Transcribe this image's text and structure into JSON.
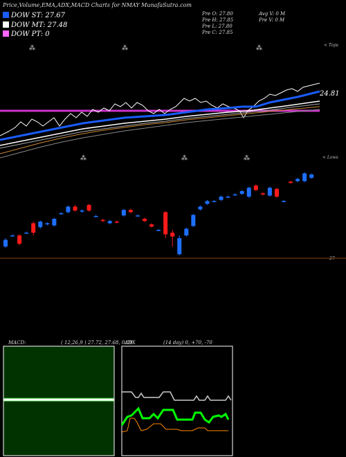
{
  "header": {
    "title": "Price,Volume,EMA,ADX,MACD Charts for NMAY MunafaSutra.com"
  },
  "legend": [
    {
      "label": "DOW ST: 27.67",
      "color": "#1a5cff"
    },
    {
      "label": "DOW MT: 27.48",
      "color": "#ffffff"
    },
    {
      "label": "DOW PT: 0",
      "color": "#ff66ff"
    }
  ],
  "prev_info": {
    "open": "Pre  O: 27.80",
    "high": "Pre  H: 27.85",
    "low": "Pre  L: 27.80",
    "close": "Pre  C: 27.85",
    "avg_volume": "Avg V: 0  M",
    "prev_volume": "Pre  V: 0  M"
  },
  "top_panel": {
    "right_label": "< Tops",
    "value_label": "24.81"
  },
  "price_panel": {
    "right_label": "< Lows",
    "bottom_value": "27"
  },
  "macd_panel": {
    "label": "MACD:",
    "values": "( 12,26,9 ) 27.72, 27.68, 0.09"
  },
  "adx_panel": {
    "label": "ADX",
    "values": "(14  day) 0, +70, -70"
  },
  "colors": {
    "bull_candle": "#1e6fff",
    "bear_candle": "#ff1a1a",
    "magenta_line": "#cc33cc",
    "macd_bg": "#003300",
    "adx_green": "#00ff00",
    "adx_orange": "#ff8800"
  },
  "chart_data": {
    "type": "candlestick",
    "title": "Price,Volume,EMA,ADX,MACD Charts for NMAY MunafaSutra.com",
    "candles": [
      {
        "open": 26.8,
        "close": 26.92,
        "high": 26.95,
        "low": 26.78,
        "dir": "up"
      },
      {
        "open": 27.0,
        "close": 27.0,
        "high": 27.02,
        "low": 26.98,
        "dir": "up"
      },
      {
        "open": 27.0,
        "close": 26.85,
        "high": 27.02,
        "low": 26.82,
        "dir": "down"
      },
      {
        "open": 27.05,
        "close": 27.05,
        "high": 27.07,
        "low": 27.03,
        "dir": "up"
      },
      {
        "open": 27.22,
        "close": 27.05,
        "high": 27.25,
        "low": 27.0,
        "dir": "down"
      },
      {
        "open": 27.15,
        "close": 27.25,
        "high": 27.27,
        "low": 27.12,
        "dir": "up"
      },
      {
        "open": 27.2,
        "close": 27.22,
        "high": 27.24,
        "low": 27.18,
        "dir": "up"
      },
      {
        "open": 27.18,
        "close": 27.3,
        "high": 27.32,
        "low": 27.16,
        "dir": "up"
      },
      {
        "open": 27.4,
        "close": 27.4,
        "high": 27.42,
        "low": 27.38,
        "dir": "up"
      },
      {
        "open": 27.42,
        "close": 27.52,
        "high": 27.54,
        "low": 27.4,
        "dir": "up"
      },
      {
        "open": 27.52,
        "close": 27.45,
        "high": 27.55,
        "low": 27.43,
        "dir": "down"
      },
      {
        "open": 27.43,
        "close": 27.45,
        "high": 27.47,
        "low": 27.41,
        "dir": "up"
      },
      {
        "open": 27.55,
        "close": 27.45,
        "high": 27.57,
        "low": 27.43,
        "dir": "down"
      },
      {
        "open": 27.35,
        "close": 27.35,
        "high": 27.37,
        "low": 27.33,
        "dir": "up"
      },
      {
        "open": 27.28,
        "close": 27.26,
        "high": 27.3,
        "low": 27.24,
        "dir": "down"
      },
      {
        "open": 27.22,
        "close": 27.26,
        "high": 27.28,
        "low": 27.2,
        "dir": "up"
      },
      {
        "open": 27.25,
        "close": 27.24,
        "high": 27.27,
        "low": 27.22,
        "dir": "down"
      },
      {
        "open": 27.36,
        "close": 27.46,
        "high": 27.48,
        "low": 27.34,
        "dir": "up"
      },
      {
        "open": 27.46,
        "close": 27.42,
        "high": 27.48,
        "low": 27.4,
        "dir": "down"
      },
      {
        "open": 27.36,
        "close": 27.36,
        "high": 27.38,
        "low": 27.34,
        "dir": "up"
      },
      {
        "open": 27.3,
        "close": 27.26,
        "high": 27.32,
        "low": 27.24,
        "dir": "down"
      },
      {
        "open": 27.2,
        "close": 27.16,
        "high": 27.22,
        "low": 27.14,
        "dir": "down"
      },
      {
        "open": 27.1,
        "close": 27.1,
        "high": 27.12,
        "low": 27.08,
        "dir": "up"
      },
      {
        "open": 27.42,
        "close": 27.02,
        "high": 27.44,
        "low": 26.95,
        "dir": "down"
      },
      {
        "open": 27.05,
        "close": 26.98,
        "high": 27.1,
        "low": 26.8,
        "dir": "down"
      },
      {
        "open": 26.66,
        "close": 26.95,
        "high": 27.0,
        "low": 26.64,
        "dir": "up"
      },
      {
        "open": 27.0,
        "close": 27.12,
        "high": 27.14,
        "low": 26.98,
        "dir": "up"
      },
      {
        "open": 27.17,
        "close": 27.37,
        "high": 27.39,
        "low": 27.15,
        "dir": "up"
      },
      {
        "open": 27.47,
        "close": 27.52,
        "high": 27.54,
        "low": 27.45,
        "dir": "up"
      },
      {
        "open": 27.57,
        "close": 27.62,
        "high": 27.64,
        "low": 27.55,
        "dir": "up"
      },
      {
        "open": 27.62,
        "close": 27.62,
        "high": 27.64,
        "low": 27.6,
        "dir": "up"
      },
      {
        "open": 27.64,
        "close": 27.7,
        "high": 27.72,
        "low": 27.62,
        "dir": "up"
      },
      {
        "open": 27.7,
        "close": 27.7,
        "high": 27.72,
        "low": 27.68,
        "dir": "up"
      },
      {
        "open": 27.74,
        "close": 27.74,
        "high": 27.76,
        "low": 27.72,
        "dir": "up"
      },
      {
        "open": 27.75,
        "close": 27.8,
        "high": 27.82,
        "low": 27.73,
        "dir": "up"
      },
      {
        "open": 27.7,
        "close": 27.86,
        "high": 27.88,
        "low": 27.68,
        "dir": "up"
      },
      {
        "open": 27.9,
        "close": 27.82,
        "high": 27.92,
        "low": 27.8,
        "dir": "down"
      },
      {
        "open": 27.76,
        "close": 27.74,
        "high": 27.78,
        "low": 27.72,
        "dir": "down"
      },
      {
        "open": 27.72,
        "close": 27.86,
        "high": 27.88,
        "low": 27.7,
        "dir": "up"
      },
      {
        "open": 27.84,
        "close": 27.7,
        "high": 27.86,
        "low": 27.68,
        "dir": "down"
      },
      {
        "open": 27.62,
        "close": 27.62,
        "high": 27.64,
        "low": 27.6,
        "dir": "up"
      },
      {
        "open": 27.97,
        "close": 27.95,
        "high": 27.99,
        "low": 27.93,
        "dir": "down"
      },
      {
        "open": 27.98,
        "close": 28.02,
        "high": 28.04,
        "low": 27.96,
        "dir": "up"
      },
      {
        "open": 27.98,
        "close": 28.12,
        "high": 28.14,
        "low": 27.96,
        "dir": "up"
      },
      {
        "open": 28.04,
        "close": 28.1,
        "high": 28.12,
        "low": 28.02,
        "dir": "up"
      }
    ],
    "ylim": [
      26.6,
      28.3
    ],
    "grid": false,
    "legend_position": "top-left"
  }
}
